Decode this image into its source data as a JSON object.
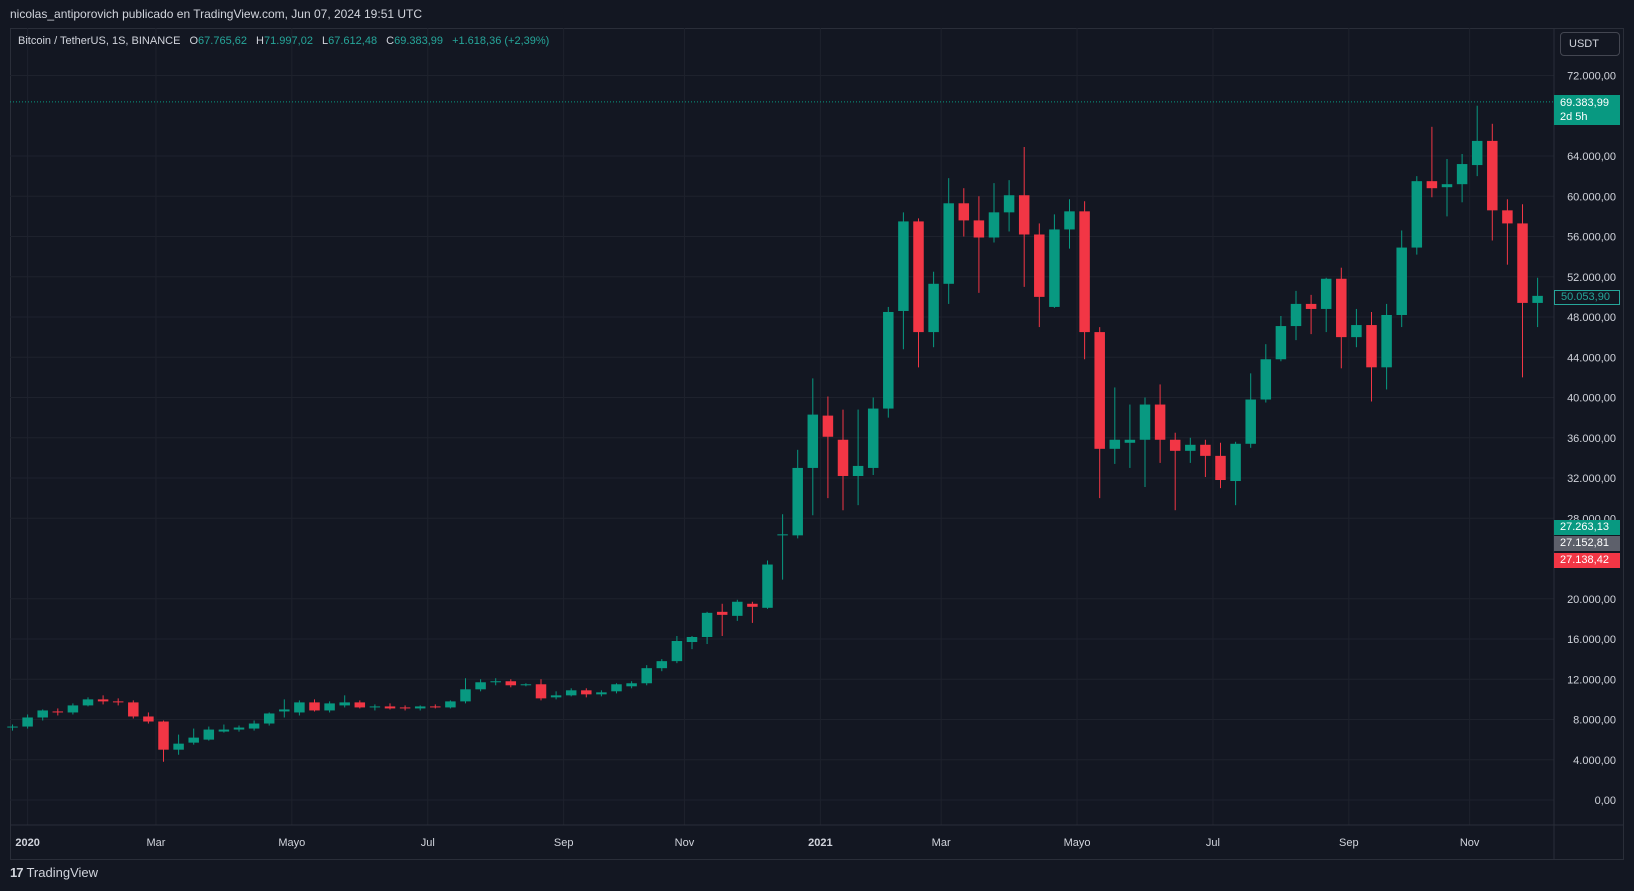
{
  "publisher_line": "nicolas_antiporovich publicado en TradingView.com, Jun 07, 2024 19:51 UTC",
  "legend": {
    "symbol": "Bitcoin / TetherUS, 1S, BINANCE",
    "o_label": "O",
    "o_value": "67.765,62",
    "h_label": "H",
    "h_value": "71.997,02",
    "l_label": "L",
    "l_value": "67.612,48",
    "c_label": "C",
    "c_value": "69.383,99",
    "change": "+1.618,36 (+2,39%)"
  },
  "currency_button": "USDT",
  "price_tags": {
    "last_price": "69.383,99",
    "countdown": "2d 5h",
    "cursor_price": "50.053,90",
    "tag_green": "27.263,13",
    "tag_gray": "27.152,81",
    "tag_red": "27.138,42"
  },
  "branding": {
    "mark": "17",
    "name": "TradingView"
  },
  "colors": {
    "background": "#131722",
    "grid": "#1e222d",
    "up": "#089981",
    "down": "#f23645",
    "text": "#d1d4dc",
    "border": "#2a2e39"
  },
  "chart_data": {
    "type": "candlestick",
    "title": "Bitcoin / TetherUS, 1S, BINANCE",
    "y_tick_labels": [
      "72.000,00",
      "64.000,00",
      "60.000,00",
      "56.000,00",
      "52.000,00",
      "48.000,00",
      "44.000,00",
      "40.000,00",
      "36.000,00",
      "32.000,00",
      "28.000,00",
      "20.000,00",
      "16.000,00",
      "12.000,00",
      "8.000,00",
      "4.000,00",
      "0,00"
    ],
    "y_tick_values": [
      72000,
      64000,
      60000,
      56000,
      52000,
      48000,
      44000,
      40000,
      36000,
      32000,
      28000,
      20000,
      16000,
      12000,
      8000,
      4000,
      0
    ],
    "ylim": [
      -1500,
      74000
    ],
    "x_tick_labels": [
      "2020",
      "Mar",
      "Mayo",
      "Jul",
      "Sep",
      "Nov",
      "2021",
      "Mar",
      "Mayo",
      "Jul",
      "Sep",
      "Nov"
    ],
    "x_tick_index": [
      1,
      9.5,
      18.5,
      27.5,
      36.5,
      44.5,
      53.5,
      61.5,
      70.5,
      79.5,
      88.5,
      96.5
    ],
    "x_tick_bold": [
      true,
      false,
      false,
      false,
      false,
      false,
      true,
      false,
      false,
      false,
      false,
      false
    ],
    "last_price": 69383.99,
    "candles": [
      {
        "o": 7200,
        "h": 7500,
        "l": 6900,
        "c": 7300
      },
      {
        "o": 7300,
        "h": 8500,
        "l": 7100,
        "c": 8200
      },
      {
        "o": 8200,
        "h": 9000,
        "l": 7900,
        "c": 8900
      },
      {
        "o": 8800,
        "h": 9100,
        "l": 8400,
        "c": 8700
      },
      {
        "o": 8700,
        "h": 9600,
        "l": 8500,
        "c": 9400
      },
      {
        "o": 9400,
        "h": 10200,
        "l": 9300,
        "c": 10000
      },
      {
        "o": 10000,
        "h": 10400,
        "l": 9500,
        "c": 9800
      },
      {
        "o": 9800,
        "h": 10100,
        "l": 9400,
        "c": 9700
      },
      {
        "o": 9700,
        "h": 9900,
        "l": 8100,
        "c": 8300
      },
      {
        "o": 8300,
        "h": 8700,
        "l": 7600,
        "c": 7800
      },
      {
        "o": 7800,
        "h": 7900,
        "l": 3800,
        "c": 5000
      },
      {
        "o": 5000,
        "h": 6500,
        "l": 4500,
        "c": 5600
      },
      {
        "o": 5700,
        "h": 7100,
        "l": 5500,
        "c": 6200
      },
      {
        "o": 6000,
        "h": 7300,
        "l": 5900,
        "c": 7000
      },
      {
        "o": 6800,
        "h": 7500,
        "l": 6700,
        "c": 7000
      },
      {
        "o": 7000,
        "h": 7400,
        "l": 6800,
        "c": 7200
      },
      {
        "o": 7100,
        "h": 7900,
        "l": 6900,
        "c": 7600
      },
      {
        "o": 7600,
        "h": 8700,
        "l": 7400,
        "c": 8600
      },
      {
        "o": 8800,
        "h": 10000,
        "l": 8200,
        "c": 9000
      },
      {
        "o": 8700,
        "h": 9900,
        "l": 8400,
        "c": 9700
      },
      {
        "o": 9700,
        "h": 10000,
        "l": 8800,
        "c": 8900
      },
      {
        "o": 8900,
        "h": 9800,
        "l": 8700,
        "c": 9600
      },
      {
        "o": 9400,
        "h": 10400,
        "l": 9200,
        "c": 9700
      },
      {
        "o": 9700,
        "h": 9900,
        "l": 9100,
        "c": 9200
      },
      {
        "o": 9200,
        "h": 9500,
        "l": 8900,
        "c": 9300
      },
      {
        "o": 9300,
        "h": 9600,
        "l": 9000,
        "c": 9100
      },
      {
        "o": 9200,
        "h": 9400,
        "l": 8900,
        "c": 9100
      },
      {
        "o": 9100,
        "h": 9400,
        "l": 8900,
        "c": 9300
      },
      {
        "o": 9300,
        "h": 9500,
        "l": 9100,
        "c": 9200
      },
      {
        "o": 9200,
        "h": 9900,
        "l": 9100,
        "c": 9800
      },
      {
        "o": 9800,
        "h": 12100,
        "l": 9600,
        "c": 11000
      },
      {
        "o": 11000,
        "h": 12000,
        "l": 10800,
        "c": 11700
      },
      {
        "o": 11700,
        "h": 12100,
        "l": 11400,
        "c": 11800
      },
      {
        "o": 11800,
        "h": 12000,
        "l": 11200,
        "c": 11400
      },
      {
        "o": 11500,
        "h": 11600,
        "l": 11300,
        "c": 11500
      },
      {
        "o": 11500,
        "h": 12000,
        "l": 9900,
        "c": 10100
      },
      {
        "o": 10200,
        "h": 10800,
        "l": 10000,
        "c": 10400
      },
      {
        "o": 10400,
        "h": 11100,
        "l": 10300,
        "c": 10900
      },
      {
        "o": 10900,
        "h": 11100,
        "l": 10200,
        "c": 10500
      },
      {
        "o": 10500,
        "h": 10900,
        "l": 10300,
        "c": 10700
      },
      {
        "o": 10800,
        "h": 11600,
        "l": 10600,
        "c": 11500
      },
      {
        "o": 11300,
        "h": 11800,
        "l": 11100,
        "c": 11600
      },
      {
        "o": 11600,
        "h": 13400,
        "l": 11400,
        "c": 13100
      },
      {
        "o": 13100,
        "h": 14000,
        "l": 12800,
        "c": 13800
      },
      {
        "o": 13800,
        "h": 16300,
        "l": 13600,
        "c": 15800
      },
      {
        "o": 15700,
        "h": 16300,
        "l": 15000,
        "c": 16200
      },
      {
        "o": 16200,
        "h": 18700,
        "l": 15500,
        "c": 18600
      },
      {
        "o": 18700,
        "h": 19500,
        "l": 16300,
        "c": 18400
      },
      {
        "o": 18300,
        "h": 19900,
        "l": 17800,
        "c": 19700
      },
      {
        "o": 19500,
        "h": 19700,
        "l": 17600,
        "c": 19200
      },
      {
        "o": 19100,
        "h": 23800,
        "l": 19000,
        "c": 23400
      },
      {
        "o": 26300,
        "h": 28400,
        "l": 21900,
        "c": 26400
      },
      {
        "o": 26300,
        "h": 34800,
        "l": 26000,
        "c": 33000
      },
      {
        "o": 33000,
        "h": 41900,
        "l": 28300,
        "c": 38300
      },
      {
        "o": 38200,
        "h": 40100,
        "l": 30000,
        "c": 36100
      },
      {
        "o": 35800,
        "h": 38800,
        "l": 28800,
        "c": 32200
      },
      {
        "o": 32200,
        "h": 38800,
        "l": 29300,
        "c": 33200
      },
      {
        "o": 33000,
        "h": 40000,
        "l": 32300,
        "c": 38900
      },
      {
        "o": 38900,
        "h": 49000,
        "l": 38000,
        "c": 48500
      },
      {
        "o": 48600,
        "h": 58400,
        "l": 44800,
        "c": 57500
      },
      {
        "o": 57500,
        "h": 57800,
        "l": 43000,
        "c": 46500
      },
      {
        "o": 46500,
        "h": 52500,
        "l": 45000,
        "c": 51300
      },
      {
        "o": 51300,
        "h": 61800,
        "l": 49300,
        "c": 59300
      },
      {
        "o": 59300,
        "h": 60800,
        "l": 56000,
        "c": 57600
      },
      {
        "o": 57600,
        "h": 60000,
        "l": 50400,
        "c": 55900
      },
      {
        "o": 55900,
        "h": 61300,
        "l": 55400,
        "c": 58400
      },
      {
        "o": 58400,
        "h": 61600,
        "l": 56500,
        "c": 60100
      },
      {
        "o": 60100,
        "h": 64900,
        "l": 51000,
        "c": 56200
      },
      {
        "o": 56200,
        "h": 57300,
        "l": 47000,
        "c": 50000
      },
      {
        "o": 49000,
        "h": 58200,
        "l": 48900,
        "c": 56700
      },
      {
        "o": 56700,
        "h": 59700,
        "l": 54800,
        "c": 58500
      },
      {
        "o": 58500,
        "h": 59500,
        "l": 43800,
        "c": 46500
      },
      {
        "o": 46500,
        "h": 47000,
        "l": 30000,
        "c": 34900
      },
      {
        "o": 34900,
        "h": 41000,
        "l": 33400,
        "c": 35800
      },
      {
        "o": 35500,
        "h": 39300,
        "l": 33000,
        "c": 35800
      },
      {
        "o": 35800,
        "h": 40000,
        "l": 31100,
        "c": 39300
      },
      {
        "o": 39300,
        "h": 41300,
        "l": 33500,
        "c": 35800
      },
      {
        "o": 35800,
        "h": 36500,
        "l": 28800,
        "c": 34700
      },
      {
        "o": 34700,
        "h": 36000,
        "l": 33500,
        "c": 35300
      },
      {
        "o": 35300,
        "h": 35800,
        "l": 32100,
        "c": 34200
      },
      {
        "o": 34200,
        "h": 35500,
        "l": 31000,
        "c": 31800
      },
      {
        "o": 31700,
        "h": 35600,
        "l": 29300,
        "c": 35400
      },
      {
        "o": 35400,
        "h": 42400,
        "l": 35000,
        "c": 39800
      },
      {
        "o": 39800,
        "h": 45300,
        "l": 39500,
        "c": 43800
      },
      {
        "o": 43800,
        "h": 48100,
        "l": 43600,
        "c": 47100
      },
      {
        "o": 47100,
        "h": 50600,
        "l": 45700,
        "c": 49300
      },
      {
        "o": 49300,
        "h": 50200,
        "l": 46300,
        "c": 48800
      },
      {
        "o": 48800,
        "h": 51900,
        "l": 46500,
        "c": 51800
      },
      {
        "o": 51800,
        "h": 52900,
        "l": 42900,
        "c": 46000
      },
      {
        "o": 46000,
        "h": 48800,
        "l": 45000,
        "c": 47200
      },
      {
        "o": 47200,
        "h": 48500,
        "l": 39600,
        "c": 43000
      },
      {
        "o": 43000,
        "h": 49300,
        "l": 40800,
        "c": 48200
      },
      {
        "o": 48200,
        "h": 56600,
        "l": 47000,
        "c": 54900
      },
      {
        "o": 54900,
        "h": 62000,
        "l": 54200,
        "c": 61500
      },
      {
        "o": 61500,
        "h": 66900,
        "l": 59900,
        "c": 60800
      },
      {
        "o": 60900,
        "h": 63700,
        "l": 58000,
        "c": 61200
      },
      {
        "o": 61200,
        "h": 64200,
        "l": 59400,
        "c": 63200
      },
      {
        "o": 63100,
        "h": 69000,
        "l": 62000,
        "c": 65500
      },
      {
        "o": 65500,
        "h": 67200,
        "l": 55600,
        "c": 58600
      },
      {
        "o": 58600,
        "h": 59700,
        "l": 53200,
        "c": 57300
      },
      {
        "o": 57300,
        "h": 59200,
        "l": 42000,
        "c": 49400
      },
      {
        "o": 49400,
        "h": 51900,
        "l": 47000,
        "c": 50100
      }
    ]
  }
}
